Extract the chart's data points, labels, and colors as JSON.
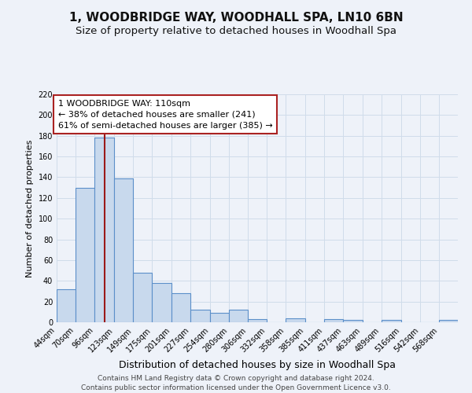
{
  "title": "1, WOODBRIDGE WAY, WOODHALL SPA, LN10 6BN",
  "subtitle": "Size of property relative to detached houses in Woodhall Spa",
  "xlabel": "Distribution of detached houses by size in Woodhall Spa",
  "ylabel": "Number of detached properties",
  "bar_color": "#c8d9ed",
  "bar_edge_color": "#5b8fc9",
  "grid_color": "#d0dcea",
  "background_color": "#eef2f9",
  "bin_labels": [
    "44sqm",
    "70sqm",
    "96sqm",
    "123sqm",
    "149sqm",
    "175sqm",
    "201sqm",
    "227sqm",
    "254sqm",
    "280sqm",
    "306sqm",
    "332sqm",
    "358sqm",
    "385sqm",
    "411sqm",
    "437sqm",
    "463sqm",
    "489sqm",
    "516sqm",
    "542sqm",
    "568sqm"
  ],
  "bar_heights": [
    32,
    130,
    178,
    139,
    48,
    38,
    28,
    12,
    9,
    12,
    3,
    0,
    4,
    0,
    3,
    2,
    0,
    2,
    0,
    0,
    2
  ],
  "bin_edges": [
    44,
    70,
    96,
    123,
    149,
    175,
    201,
    227,
    254,
    280,
    306,
    332,
    358,
    385,
    411,
    437,
    463,
    489,
    516,
    542,
    568,
    594
  ],
  "property_size": 110,
  "vline_color": "#9b1a1a",
  "annotation_line1": "1 WOODBRIDGE WAY: 110sqm",
  "annotation_line2": "← 38% of detached houses are smaller (241)",
  "annotation_line3": "61% of semi-detached houses are larger (385) →",
  "annotation_box_color": "#ffffff",
  "annotation_box_edge_color": "#aa2222",
  "ylim": [
    0,
    220
  ],
  "yticks": [
    0,
    20,
    40,
    60,
    80,
    100,
    120,
    140,
    160,
    180,
    200,
    220
  ],
  "footer_line1": "Contains HM Land Registry data © Crown copyright and database right 2024.",
  "footer_line2": "Contains public sector information licensed under the Open Government Licence v3.0.",
  "title_fontsize": 11,
  "subtitle_fontsize": 9.5,
  "xlabel_fontsize": 9,
  "ylabel_fontsize": 8,
  "tick_fontsize": 7,
  "annotation_fontsize": 8,
  "footer_fontsize": 6.5
}
